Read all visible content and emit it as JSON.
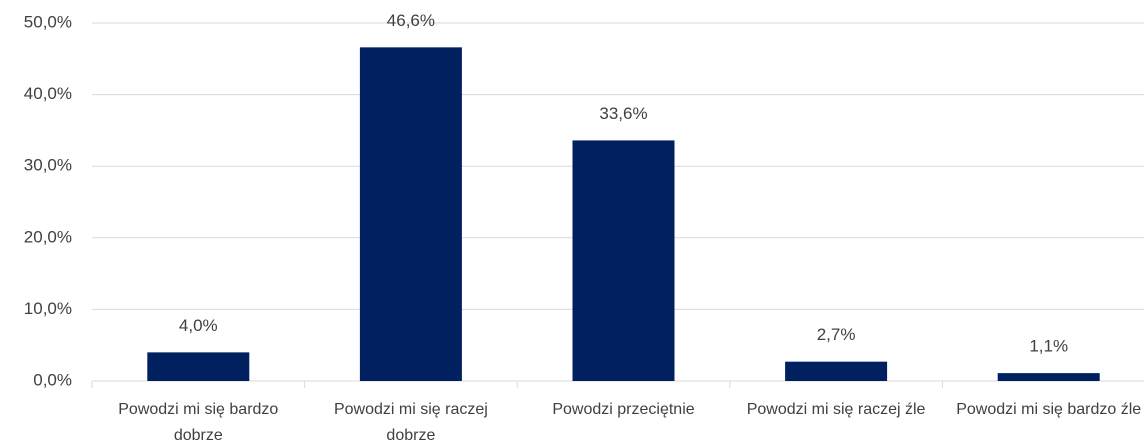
{
  "chart_data": {
    "type": "bar",
    "categories": [
      "Powodzi mi się bardzo dobrze",
      "Powodzi mi się raczej dobrze",
      "Powodzi przeciętnie",
      "Powodzi mi się raczej źle",
      "Powodzi mi się bardzo źle"
    ],
    "values": [
      4.0,
      46.6,
      33.6,
      2.7,
      1.1
    ],
    "value_labels": [
      "4,0%",
      "46,6%",
      "33,6%",
      "2,7%",
      "1,1%"
    ],
    "color": "#002060",
    "ylim": [
      0,
      50
    ],
    "yticks": [
      {
        "value": 0,
        "label": "0,0%"
      },
      {
        "value": 10,
        "label": "10,0%"
      },
      {
        "value": 20,
        "label": "20,0%"
      },
      {
        "value": 30,
        "label": "30,0%"
      },
      {
        "value": 40,
        "label": "40,0%"
      },
      {
        "value": 50,
        "label": "50,0%"
      }
    ],
    "grid": true
  }
}
